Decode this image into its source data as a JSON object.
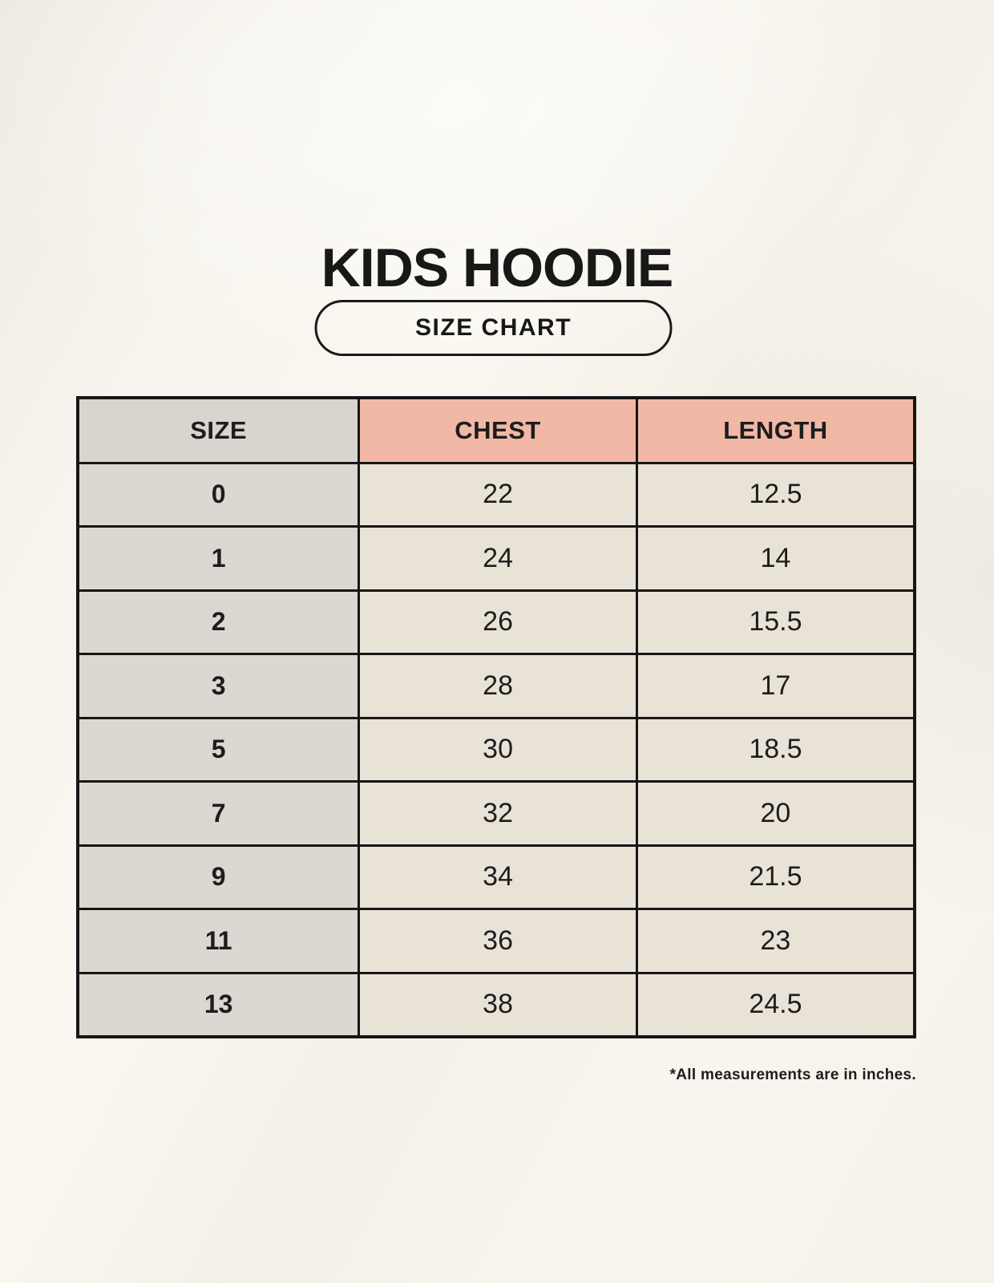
{
  "page": {
    "title": "KIDS HOODIE",
    "badge_label": "SIZE CHART",
    "footnote": "*All measurements are in inches."
  },
  "colors": {
    "background": "#f5f2ea",
    "header_size_bg": "#dad4ce",
    "header_accent_bg": "#f1b8a6",
    "size_column_bg": "#ddd7d1",
    "data_cell_bg": "#e9e3d7",
    "border": "#161616",
    "text": "#1d1d1d"
  },
  "chart_data": {
    "type": "table",
    "title": "KIDS HOODIE",
    "subtitle": "SIZE CHART",
    "units_note": "*All measurements are in inches.",
    "columns": [
      "SIZE",
      "CHEST",
      "LENGTH"
    ],
    "rows": [
      [
        "0",
        "22",
        "12.5"
      ],
      [
        "1",
        "24",
        "14"
      ],
      [
        "2",
        "26",
        "15.5"
      ],
      [
        "3",
        "28",
        "17"
      ],
      [
        "5",
        "30",
        "18.5"
      ],
      [
        "7",
        "32",
        "20"
      ],
      [
        "9",
        "34",
        "21.5"
      ],
      [
        "11",
        "36",
        "23"
      ],
      [
        "13",
        "38",
        "24.5"
      ]
    ]
  }
}
